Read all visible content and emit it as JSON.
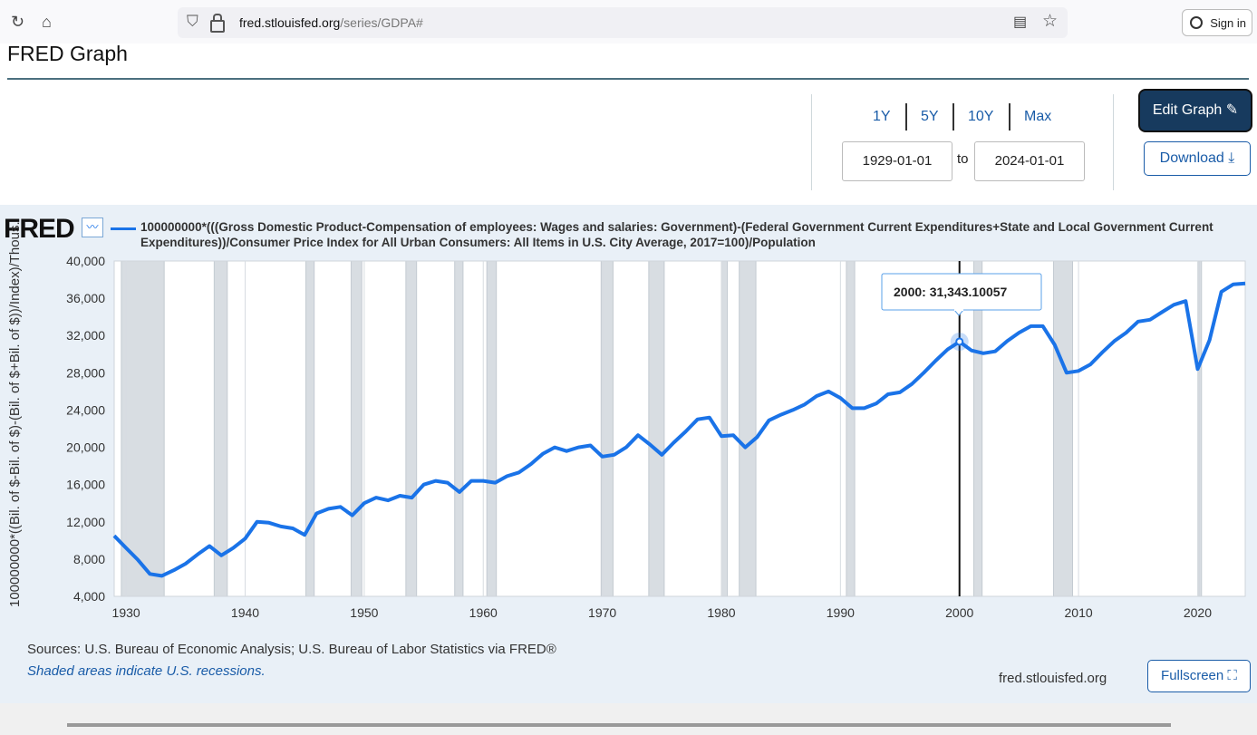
{
  "browser": {
    "url_host": "fred.stlouisfed.org",
    "url_path": "/series/GDPA#",
    "sign_in": "Sign in"
  },
  "page": {
    "title": "FRED Graph"
  },
  "controls": {
    "range_buttons": [
      "1Y",
      "5Y",
      "10Y",
      "Max"
    ],
    "start_date": "1929-01-01",
    "to_label": "to",
    "end_date": "2024-01-01",
    "edit_graph": "Edit Graph",
    "download": "Download",
    "fullscreen": "Fullscreen"
  },
  "footer": {
    "logo": "FRED",
    "sources": "Sources: U.S. Bureau of Economic Analysis; U.S. Bureau of Labor Statistics via FRED®",
    "shaded_note": "Shaded areas indicate U.S. recessions.",
    "site": "fred.stlouisfed.org"
  },
  "colors": {
    "series": "#1a73e8",
    "recession": "#d8dde2",
    "panel": "#e9f0f7",
    "button_dark": "#173a5e",
    "link": "#1a5ca8"
  },
  "chart_data": {
    "type": "line",
    "legend": "100000000*(((Gross Domestic Product-Compensation of employees: Wages and salaries: Government)-(Federal Government Current Expenditures+State and Local Government Current Expenditures))/Consumer Price Index for All Urban Consumers: All Items in U.S. City Average, 2017=100)/Population",
    "ylabel": "100000000*((Bil. of $-Bil. of $)-(Bil. of $+Bil. of $))/Index)/Thous.",
    "xlim": [
      1929,
      2024
    ],
    "ylim": [
      4000,
      40000
    ],
    "yticks": [
      4000,
      8000,
      12000,
      16000,
      20000,
      24000,
      28000,
      32000,
      36000,
      40000
    ],
    "ytick_labels": [
      "4,000",
      "8,000",
      "12,000",
      "16,000",
      "20,000",
      "24,000",
      "28,000",
      "32,000",
      "36,000",
      "40,000"
    ],
    "xticks": [
      1930,
      1940,
      1950,
      1960,
      1970,
      1980,
      1990,
      2000,
      2010,
      2020
    ],
    "xtick_labels": [
      "1930",
      "1940",
      "1950",
      "1960",
      "1970",
      "1980",
      "1990",
      "2000",
      "2010",
      "2020"
    ],
    "grid": "vertical lines at x ticks",
    "recessions": [
      [
        1929.6,
        1933.2
      ],
      [
        1937.4,
        1938.5
      ],
      [
        1945.1,
        1945.8
      ],
      [
        1948.9,
        1949.8
      ],
      [
        1953.5,
        1954.4
      ],
      [
        1957.6,
        1958.3
      ],
      [
        1960.3,
        1961.1
      ],
      [
        1969.9,
        1970.9
      ],
      [
        1973.9,
        1975.2
      ],
      [
        1980.0,
        1980.5
      ],
      [
        1981.5,
        1982.9
      ],
      [
        1990.5,
        1991.2
      ],
      [
        2001.2,
        2001.9
      ],
      [
        2007.9,
        2009.5
      ],
      [
        2020.1,
        2020.3
      ]
    ],
    "series": [
      {
        "x": [
          1929,
          1930,
          1931,
          1932,
          1933,
          1934,
          1935,
          1936,
          1937,
          1938,
          1939,
          1940,
          1941,
          1942,
          1943,
          1944,
          1945,
          1946,
          1947,
          1948,
          1949,
          1950,
          1951,
          1952,
          1953,
          1954,
          1955,
          1956,
          1957,
          1958,
          1959,
          1960,
          1961,
          1962,
          1963,
          1964,
          1965,
          1966,
          1967,
          1968,
          1969,
          1970,
          1971,
          1972,
          1973,
          1974,
          1975,
          1976,
          1977,
          1978,
          1979,
          1980,
          1981,
          1982,
          1983,
          1984,
          1985,
          1986,
          1987,
          1988,
          1989,
          1990,
          1991,
          1992,
          1993,
          1994,
          1995,
          1996,
          1997,
          1998,
          1999,
          2000,
          2001,
          2002,
          2003,
          2004,
          2005,
          2006,
          2007,
          2008,
          2009,
          2010,
          2011,
          2012,
          2013,
          2014,
          2015,
          2016,
          2017,
          2018,
          2019,
          2020,
          2021,
          2022,
          2023,
          2024
        ],
        "values": [
          10500,
          9200,
          7900,
          6400,
          6200,
          6800,
          7500,
          8500,
          9400,
          8400,
          9200,
          10200,
          12000,
          11900,
          11500,
          11300,
          10600,
          12900,
          13400,
          13600,
          12700,
          14000,
          14600,
          14300,
          14800,
          14600,
          16000,
          16400,
          16200,
          15200,
          16400,
          16400,
          16200,
          16900,
          17300,
          18200,
          19300,
          20000,
          19600,
          20000,
          20200,
          19000,
          19200,
          20000,
          21300,
          20300,
          19200,
          20500,
          21700,
          23000,
          23200,
          21200,
          21300,
          20000,
          21100,
          22900,
          23500,
          24000,
          24600,
          25500,
          26000,
          25300,
          24200,
          24200,
          24700,
          25700,
          25900,
          26800,
          28000,
          29300,
          30500,
          31343.10057,
          30400,
          30100,
          30300,
          31400,
          32300,
          33000,
          33000,
          31000,
          28000,
          28200,
          28900,
          30200,
          31400,
          32300,
          33500,
          33700,
          34500,
          35300,
          35700,
          28400,
          31500,
          36700,
          37500,
          37600
        ]
      }
    ],
    "tooltip": {
      "label": "2000:",
      "value": "31,343.10057"
    }
  }
}
